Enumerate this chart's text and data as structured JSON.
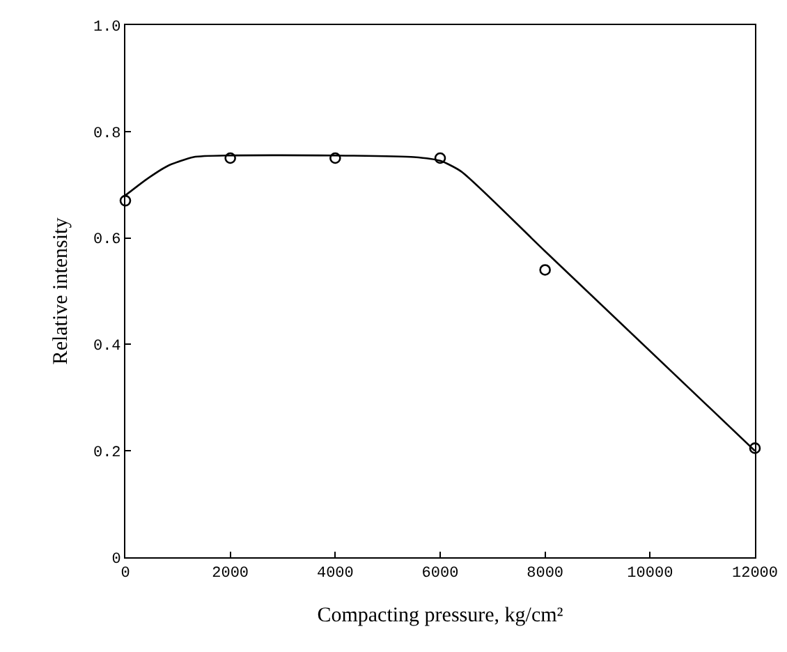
{
  "chart_data": {
    "type": "scatter",
    "xlabel": "Compacting pressure, kg/cm²",
    "ylabel": "Relative intensity",
    "xlim": [
      0,
      12000
    ],
    "xticks": [
      0,
      2000,
      4000,
      6000,
      8000,
      10000,
      12000
    ],
    "ylim": [
      0,
      1.0
    ],
    "yticks": [
      0,
      0.2,
      0.4,
      0.6,
      0.8,
      {
        "value": 1.0,
        "label": "1.0"
      }
    ],
    "grid": false,
    "series": [
      {
        "marker": "circle",
        "color": "#000000",
        "x": [
          0,
          2000,
          4000,
          6000,
          8000,
          12000
        ],
        "values": [
          0.67,
          0.75,
          0.75,
          0.75,
          0.54,
          0.205
        ]
      },
      {
        "type": "line",
        "marker": "none",
        "line_style": "solid",
        "color": "#000000",
        "x": [
          0,
          400,
          800,
          1300,
          2000,
          4000,
          5500,
          6000,
          6400,
          8000,
          12000
        ],
        "values": [
          0.68,
          0.71,
          0.735,
          0.752,
          0.755,
          0.755,
          0.752,
          0.745,
          0.725,
          0.575,
          0.2
        ]
      }
    ]
  }
}
